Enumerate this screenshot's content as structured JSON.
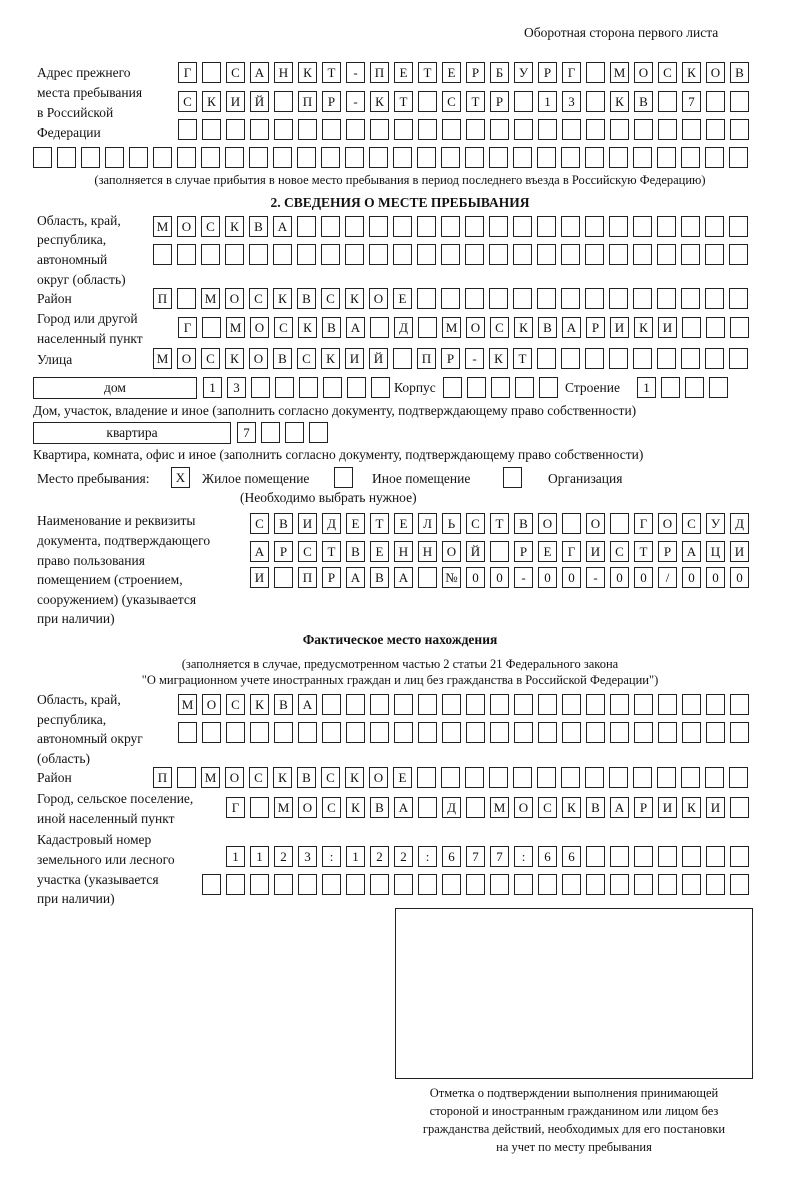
{
  "header": {
    "side": "Оборотная сторона первого листа"
  },
  "prev": {
    "label": [
      "Адрес прежнего",
      "места пребывания",
      "в Российской",
      "Федерации"
    ],
    "r1": [
      "Г",
      "",
      "С",
      "А",
      "Н",
      "К",
      "Т",
      "-",
      "П",
      "Е",
      "Т",
      "Е",
      "Р",
      "Б",
      "У",
      "Р",
      "Г",
      "",
      "М",
      "О",
      "С",
      "К",
      "О",
      "В"
    ],
    "r2": [
      "С",
      "К",
      "И",
      "Й",
      "",
      "П",
      "Р",
      "-",
      "К",
      "Т",
      "",
      "С",
      "Т",
      "Р",
      "",
      "1",
      "3",
      "",
      "К",
      "В",
      "",
      "7",
      "",
      ""
    ],
    "r3": [
      "",
      "",
      "",
      "",
      "",
      "",
      "",
      "",
      "",
      "",
      "",
      "",
      "",
      "",
      "",
      "",
      "",
      "",
      "",
      "",
      "",
      "",
      "",
      ""
    ],
    "r4": [
      "",
      "",
      "",
      "",
      "",
      "",
      "",
      "",
      "",
      "",
      "",
      "",
      "",
      "",
      "",
      "",
      "",
      "",
      "",
      "",
      "",
      "",
      "",
      "",
      "",
      "",
      "",
      "",
      "",
      ""
    ],
    "note": "(заполняется в случае прибытия в новое место пребывания в период последнего въезда в Российскую Федерацию)"
  },
  "stay": {
    "heading": "2. СВЕДЕНИЯ О МЕСТЕ ПРЕБЫВАНИЯ",
    "region_label": [
      "Область, край,",
      "республика,",
      "автономный",
      "округ (область)"
    ],
    "region1": [
      "М",
      "О",
      "С",
      "К",
      "В",
      "А",
      "",
      "",
      "",
      "",
      "",
      "",
      "",
      "",
      "",
      "",
      "",
      "",
      "",
      "",
      "",
      "",
      "",
      "",
      ""
    ],
    "region2": [
      "",
      "",
      "",
      "",
      "",
      "",
      "",
      "",
      "",
      "",
      "",
      "",
      "",
      "",
      "",
      "",
      "",
      "",
      "",
      "",
      "",
      "",
      "",
      "",
      ""
    ],
    "district_label": "Район",
    "district": [
      "П",
      "",
      "М",
      "О",
      "С",
      "К",
      "В",
      "С",
      "К",
      "О",
      "Е",
      "",
      "",
      "",
      "",
      "",
      "",
      "",
      "",
      "",
      "",
      "",
      "",
      "",
      ""
    ],
    "city_label": [
      "Город или другой",
      "населенный пункт"
    ],
    "city": [
      "Г",
      "",
      "М",
      "О",
      "С",
      "К",
      "В",
      "А",
      "",
      "Д",
      "",
      "М",
      "О",
      "С",
      "К",
      "В",
      "А",
      "Р",
      "И",
      "К",
      "И",
      "",
      "",
      ""
    ],
    "street_label": "Улица",
    "street": [
      "М",
      "О",
      "С",
      "К",
      "О",
      "В",
      "С",
      "К",
      "И",
      "Й",
      "",
      "П",
      "Р",
      "-",
      "К",
      "Т",
      "",
      "",
      "",
      "",
      "",
      "",
      "",
      "",
      ""
    ],
    "house_type": "дом",
    "house": [
      "1",
      "3",
      "",
      "",
      "",
      "",
      "",
      ""
    ],
    "korpus_label": "Корпус",
    "korpus": [
      "",
      "",
      "",
      "",
      ""
    ],
    "building_label": "Строение",
    "building": [
      "1",
      "",
      "",
      ""
    ],
    "house_note": "Дом, участок, владение и иное (заполнить согласно документу, подтверждающему право собственности)",
    "flat_type": "квартира",
    "flat": [
      "7",
      "",
      "",
      ""
    ],
    "flat_note": "Квартира, комната, офис и иное (заполнить согласно документу, подтверждающему право собственности)",
    "place_label": "Место пребывания:",
    "place_options": [
      {
        "mark": "X",
        "label": "Жилое помещение"
      },
      {
        "mark": "",
        "label": "Иное помещение"
      },
      {
        "mark": "",
        "label": "Организация"
      }
    ],
    "place_note": "(Необходимо выбрать нужное)",
    "doc_label": [
      "Наименование и реквизиты",
      "документа, подтверждающего",
      "право пользования",
      "помещением (строением,",
      "сооружением) (указывается",
      "при наличии)"
    ],
    "doc1": [
      "С",
      "В",
      "И",
      "Д",
      "Е",
      "Т",
      "Е",
      "Л",
      "Ь",
      "С",
      "Т",
      "В",
      "О",
      "",
      "О",
      "",
      "Г",
      "О",
      "С",
      "У",
      "Д"
    ],
    "doc2": [
      "А",
      "Р",
      "С",
      "Т",
      "В",
      "Е",
      "Н",
      "Н",
      "О",
      "Й",
      "",
      "Р",
      "Е",
      "Г",
      "И",
      "С",
      "Т",
      "Р",
      "А",
      "Ц",
      "И"
    ],
    "doc3": [
      "И",
      "",
      "П",
      "Р",
      "А",
      "В",
      "А",
      "",
      "№",
      "0",
      "0",
      "-",
      "0",
      "0",
      "-",
      "0",
      "0",
      "/",
      "0",
      "0",
      "0"
    ]
  },
  "actual": {
    "heading": "Фактическое место нахождения",
    "note1": "(заполняется в случае, предусмотренном частью 2 статьи 21 Федерального закона",
    "note2": "\"О миграционном учете иностранных граждан и лиц без гражданства в Российской Федерации\")",
    "region_label": [
      "Область, край,",
      "республика,",
      "автономный округ",
      "(область)"
    ],
    "region1": [
      "М",
      "О",
      "С",
      "К",
      "В",
      "А",
      "",
      "",
      "",
      "",
      "",
      "",
      "",
      "",
      "",
      "",
      "",
      "",
      "",
      "",
      "",
      "",
      "",
      ""
    ],
    "region2": [
      "",
      "",
      "",
      "",
      "",
      "",
      "",
      "",
      "",
      "",
      "",
      "",
      "",
      "",
      "",
      "",
      "",
      "",
      "",
      "",
      "",
      "",
      "",
      ""
    ],
    "district_label": "Район",
    "district": [
      "П",
      "",
      "М",
      "О",
      "С",
      "К",
      "В",
      "С",
      "К",
      "О",
      "Е",
      "",
      "",
      "",
      "",
      "",
      "",
      "",
      "",
      "",
      "",
      "",
      "",
      "",
      ""
    ],
    "city_label": [
      "Город, сельское поселение,",
      "иной населенный пункт"
    ],
    "city": [
      "Г",
      "",
      "М",
      "О",
      "С",
      "К",
      "В",
      "А",
      "",
      "Д",
      "",
      "М",
      "О",
      "С",
      "К",
      "В",
      "А",
      "Р",
      "И",
      "К",
      "И",
      ""
    ],
    "cad_label": [
      "Кадастровый номер",
      "земельного или лесного",
      "участка (указывается",
      "при наличии)"
    ],
    "cad1": [
      "1",
      "1",
      "2",
      "3",
      ":",
      "1",
      "2",
      "2",
      ":",
      "6",
      "7",
      "7",
      ":",
      "6",
      "6",
      "",
      "",
      "",
      "",
      "",
      "",
      ""
    ],
    "cad2": [
      "",
      "",
      "",
      "",
      "",
      "",
      "",
      "",
      "",
      "",
      "",
      "",
      "",
      "",
      "",
      "",
      "",
      "",
      "",
      "",
      "",
      "",
      ""
    ]
  },
  "confirm": {
    "caption": [
      "Отметка о подтверждении выполнения принимающей",
      "стороной и иностранным гражданином или лицом без",
      "гражданства действий, необходимых для его постановки",
      "на учет по месту пребывания"
    ]
  }
}
